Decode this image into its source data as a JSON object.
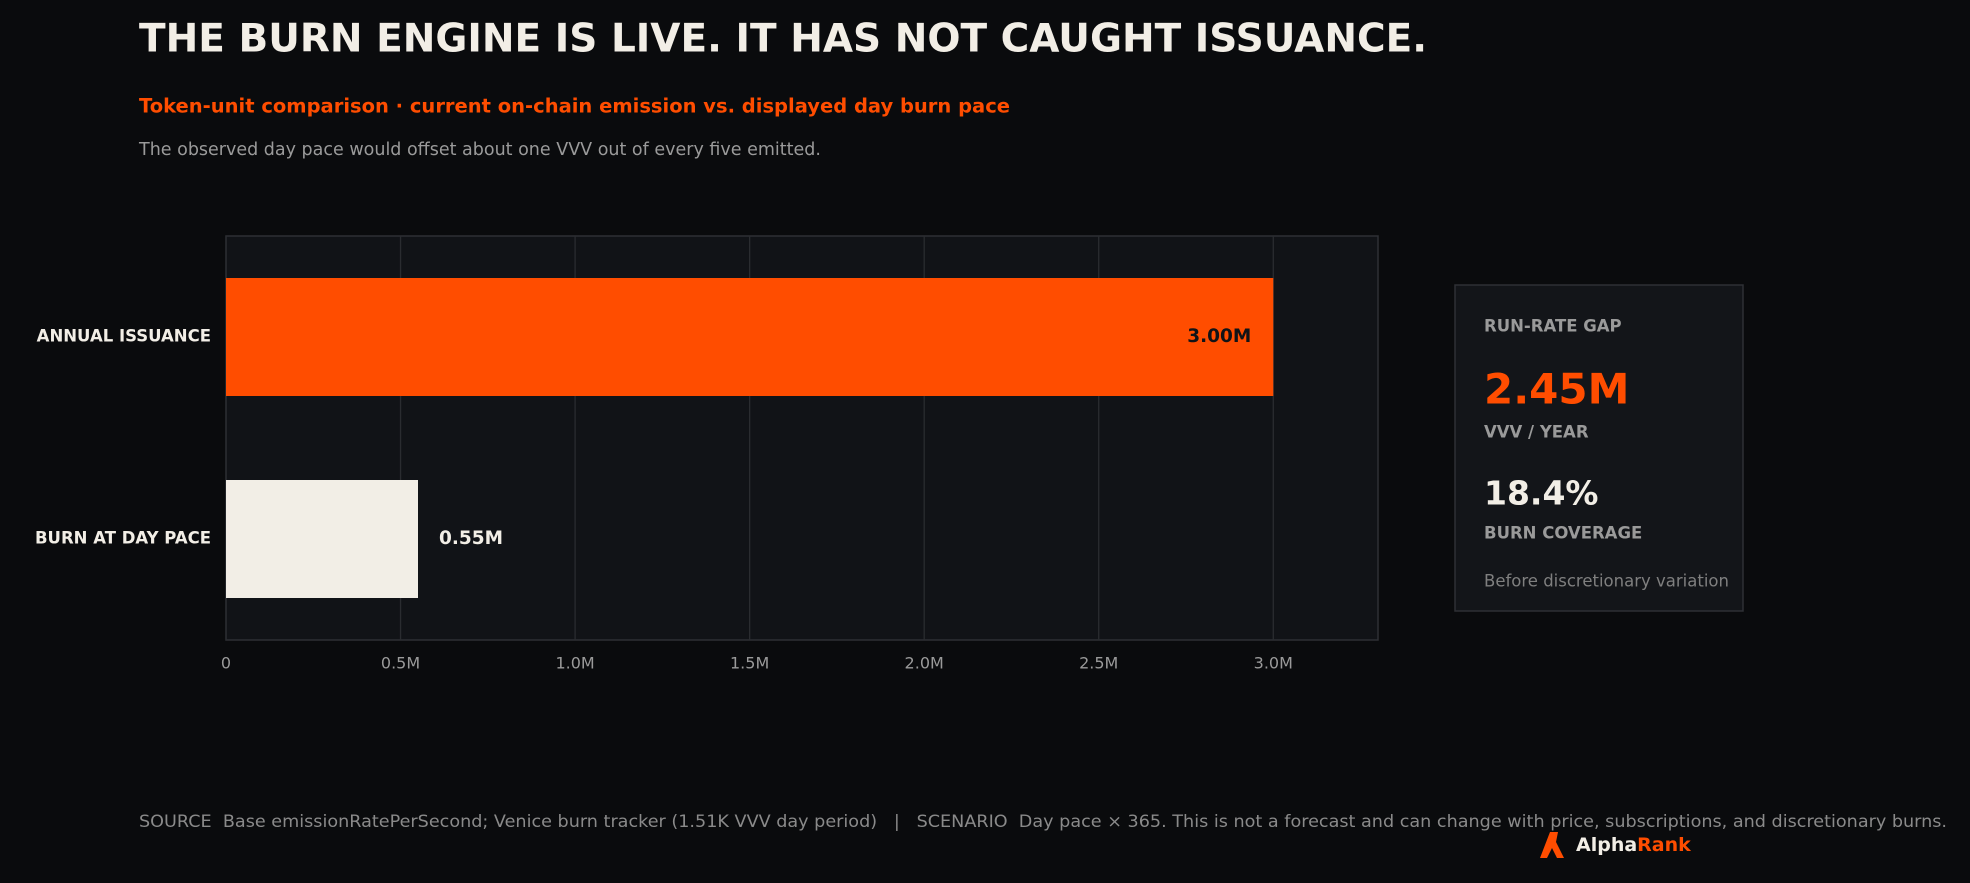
{
  "chart_data": {
    "type": "bar",
    "orientation": "horizontal",
    "title": "THE BURN ENGINE IS LIVE. IT HAS NOT CAUGHT ISSUANCE.",
    "subtitle": "Token-unit comparison · current on-chain emission vs. displayed day burn pace",
    "description": "The observed day pace would offset about one VVV out of every five emitted.",
    "categories": [
      "ANNUAL ISSUANCE",
      "BURN AT DAY PACE"
    ],
    "values": [
      3000000,
      550000
    ],
    "value_labels": [
      "3.00M",
      "0.55M"
    ],
    "colors": [
      "#ff4d00",
      "#f2eee6"
    ],
    "xlim": [
      0,
      3300000
    ],
    "xticks": [
      0,
      {
        "value": 500000,
        "label": "0.5M"
      },
      {
        "value": 1000000,
        "label": "1.0M"
      },
      {
        "value": 1500000,
        "label": "1.5M"
      },
      {
        "value": 2000000,
        "label": "2.0M"
      },
      {
        "value": 2500000,
        "label": "2.5M"
      },
      {
        "value": 3000000,
        "label": "3.0M"
      }
    ],
    "grid": true
  },
  "panel": {
    "heading": "RUN-RATE GAP",
    "gap": "2.45M",
    "gap_unit": "VVV / YEAR",
    "coverage": "18.4%",
    "coverage_label": "BURN COVERAGE",
    "note": "Before discretionary variation"
  },
  "footer": "SOURCE  Base emissionRatePerSecond; Venice burn tracker (1.51K VVV day period)   |   SCENARIO  Day pace × 365. This is not a forecast and can change with price, subscriptions, and discretionary burns.",
  "logo": {
    "first": "Alpha",
    "second": "Rank"
  }
}
